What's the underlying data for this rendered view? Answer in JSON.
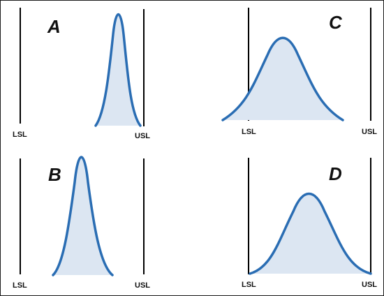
{
  "panels": [
    {
      "id": "A",
      "letter": "A",
      "lower_limit_label": "LSL",
      "upper_limit_label": "USL"
    },
    {
      "id": "B",
      "letter": "B",
      "lower_limit_label": "LSL",
      "upper_limit_label": "USL"
    },
    {
      "id": "C",
      "letter": "C",
      "lower_limit_label": "LSL",
      "upper_limit_label": "USL"
    },
    {
      "id": "D",
      "letter": "D",
      "lower_limit_label": "LSL",
      "upper_limit_label": "USL"
    }
  ],
  "colors": {
    "curve_stroke": "#2a6db3",
    "curve_fill": "#dce6f2",
    "limit_line": "#000000",
    "border": "#1a1a1a"
  }
}
